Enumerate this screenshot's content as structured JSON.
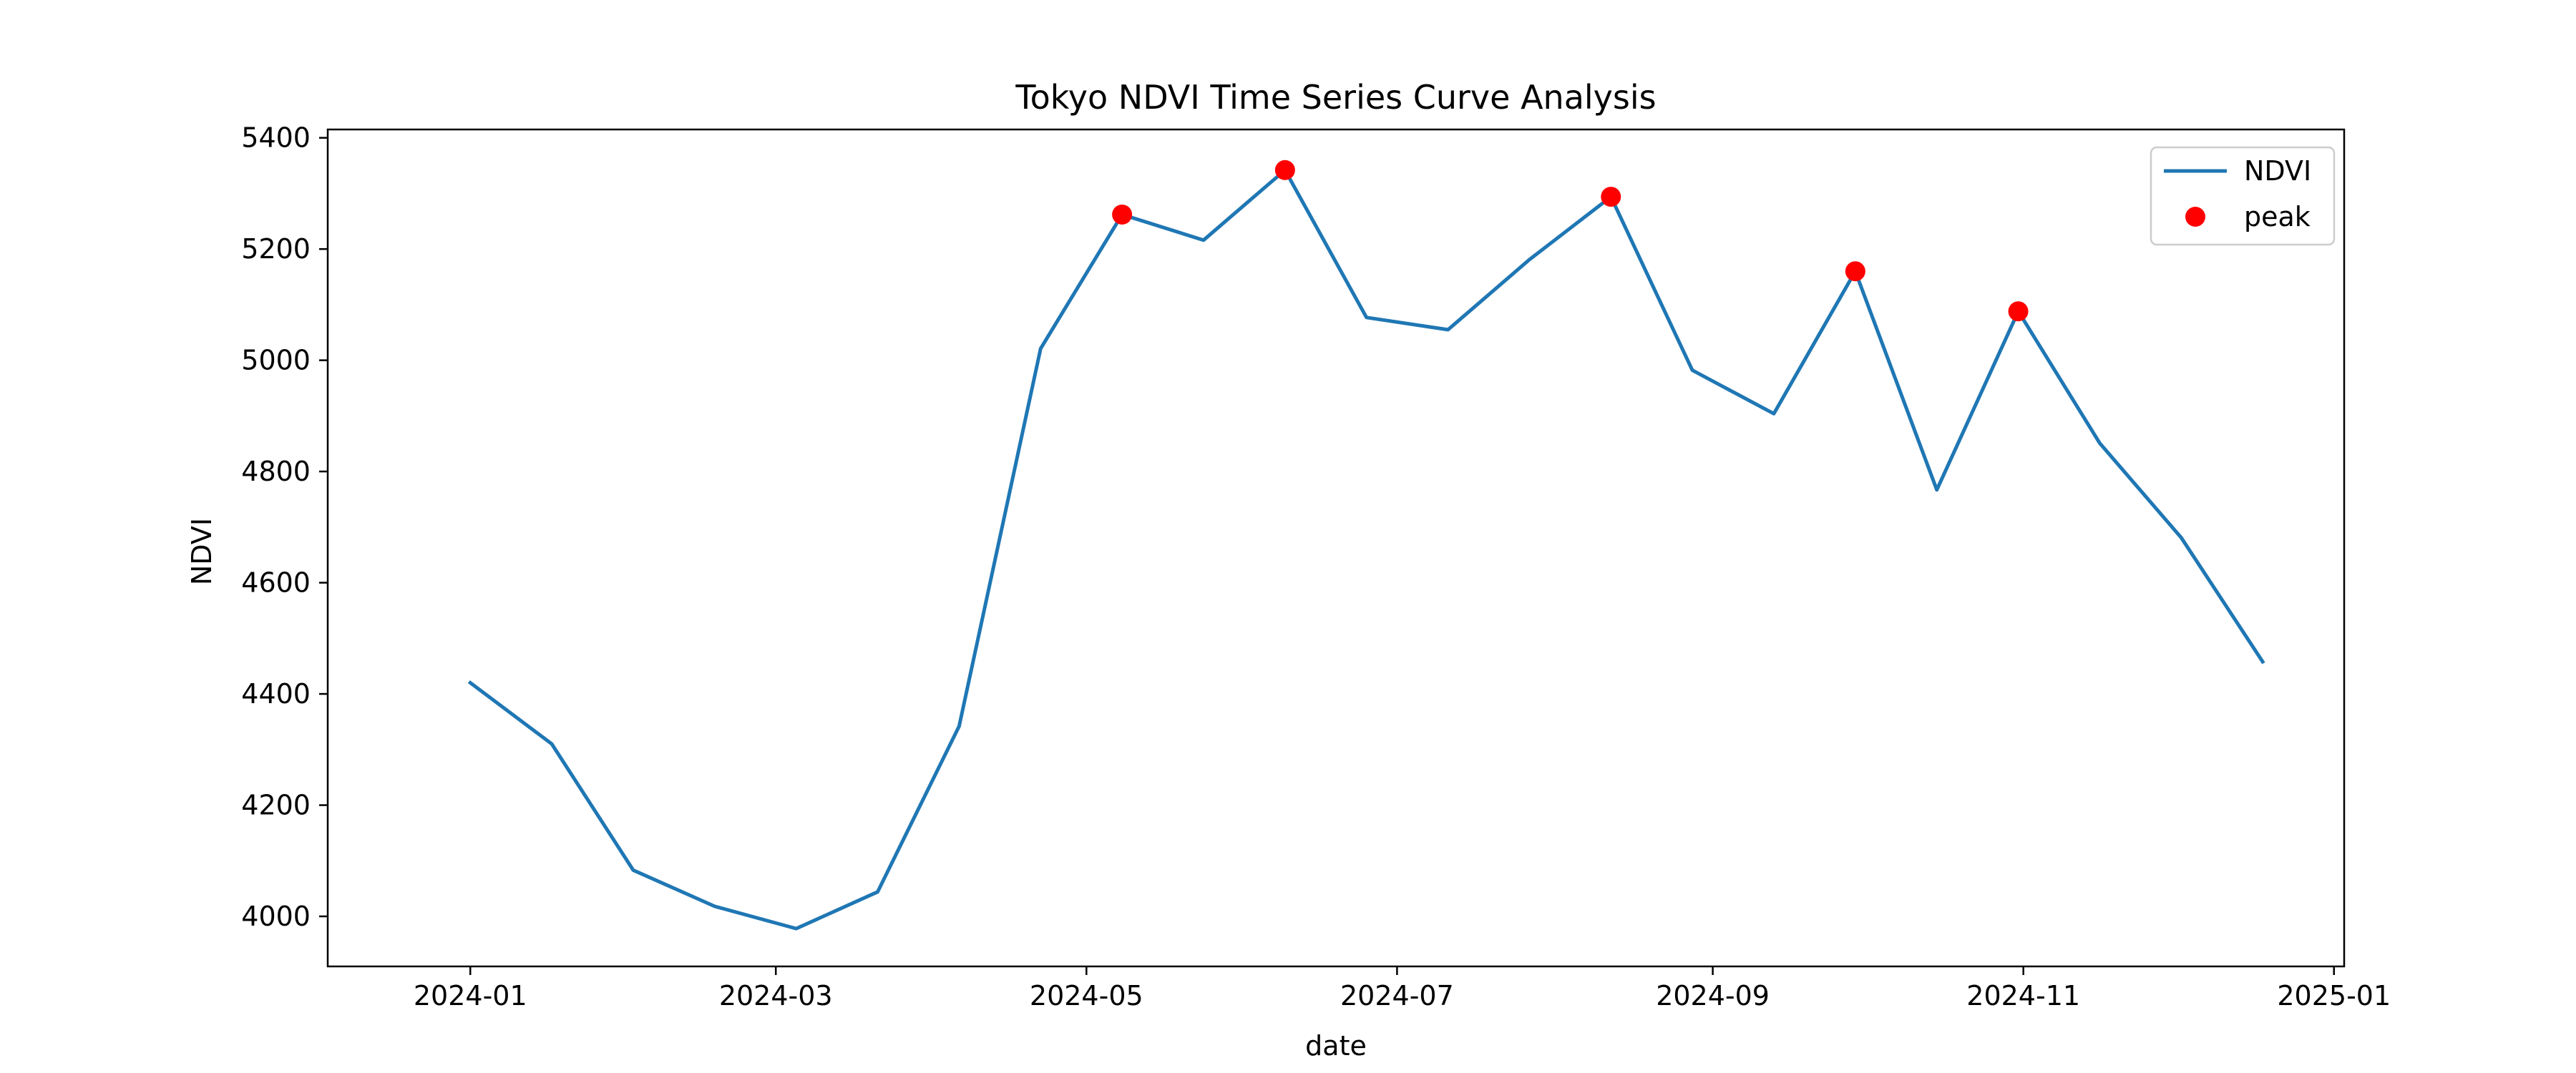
{
  "chart_data": {
    "type": "line",
    "title": "Tokyo NDVI Time Series Curve Analysis",
    "xlabel": "date",
    "ylabel": "NDVI",
    "xlim": [
      "2023-12-04",
      "2025-01-03"
    ],
    "ylim": [
      3910,
      5415
    ],
    "x_ticks": [
      "2024-01-01",
      "2024-03-01",
      "2024-05-01",
      "2024-07-01",
      "2024-09-01",
      "2024-11-01",
      "2025-01-01"
    ],
    "x_tick_labels": [
      "2024-01",
      "2024-03",
      "2024-05",
      "2024-07",
      "2024-09",
      "2024-11",
      "2025-01"
    ],
    "y_ticks": [
      4000,
      4200,
      4400,
      4600,
      4800,
      5000,
      5200,
      5400
    ],
    "grid": false,
    "legend_position": "top-right",
    "series": [
      {
        "name": "NDVI",
        "color": "#1f77b4",
        "x": [
          "2024-01-01",
          "2024-01-17",
          "2024-02-02",
          "2024-02-18",
          "2024-03-05",
          "2024-03-21",
          "2024-04-06",
          "2024-04-22",
          "2024-05-08",
          "2024-05-24",
          "2024-06-09",
          "2024-06-25",
          "2024-07-11",
          "2024-07-27",
          "2024-08-12",
          "2024-08-28",
          "2024-09-13",
          "2024-09-29",
          "2024-10-15",
          "2024-10-31",
          "2024-11-16",
          "2024-12-02",
          "2024-12-18"
        ],
        "y": [
          4420,
          4310,
          4083,
          4018,
          3978,
          4044,
          4342,
          5021,
          5262,
          5216,
          5342,
          5077,
          5055,
          5181,
          5294,
          4982,
          4904,
          5160,
          4767,
          5088,
          4851,
          4681,
          4458
        ]
      },
      {
        "name": "peak",
        "color": "#ff0000",
        "x": [
          "2024-05-08",
          "2024-06-09",
          "2024-08-12",
          "2024-09-29",
          "2024-10-31"
        ],
        "y": [
          5262,
          5342,
          5294,
          5160,
          5088
        ]
      }
    ]
  }
}
